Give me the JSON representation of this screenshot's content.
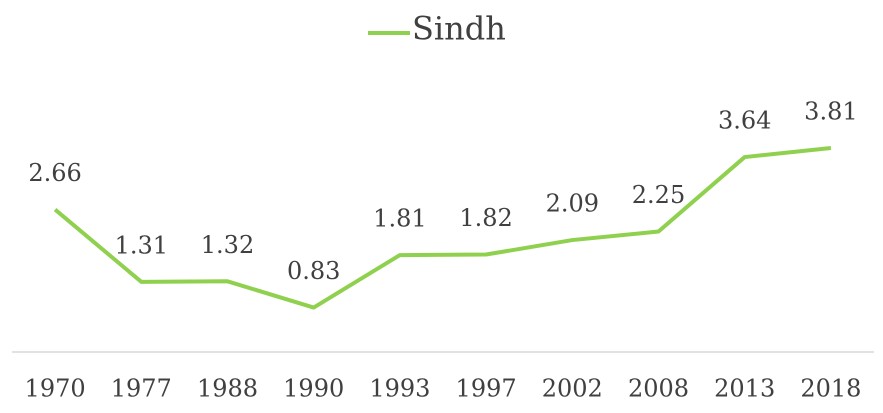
{
  "chart_data": {
    "type": "line",
    "categories": [
      "1970",
      "1977",
      "1988",
      "1990",
      "1993",
      "1997",
      "2002",
      "2008",
      "2013",
      "2018"
    ],
    "series": [
      {
        "name": "Sindh",
        "color": "#8fd14f",
        "values": [
          2.66,
          1.31,
          1.32,
          0.83,
          1.81,
          1.82,
          2.09,
          2.25,
          3.64,
          3.81
        ]
      }
    ],
    "ylim": [
      0,
      4.5
    ],
    "legend": "top"
  }
}
